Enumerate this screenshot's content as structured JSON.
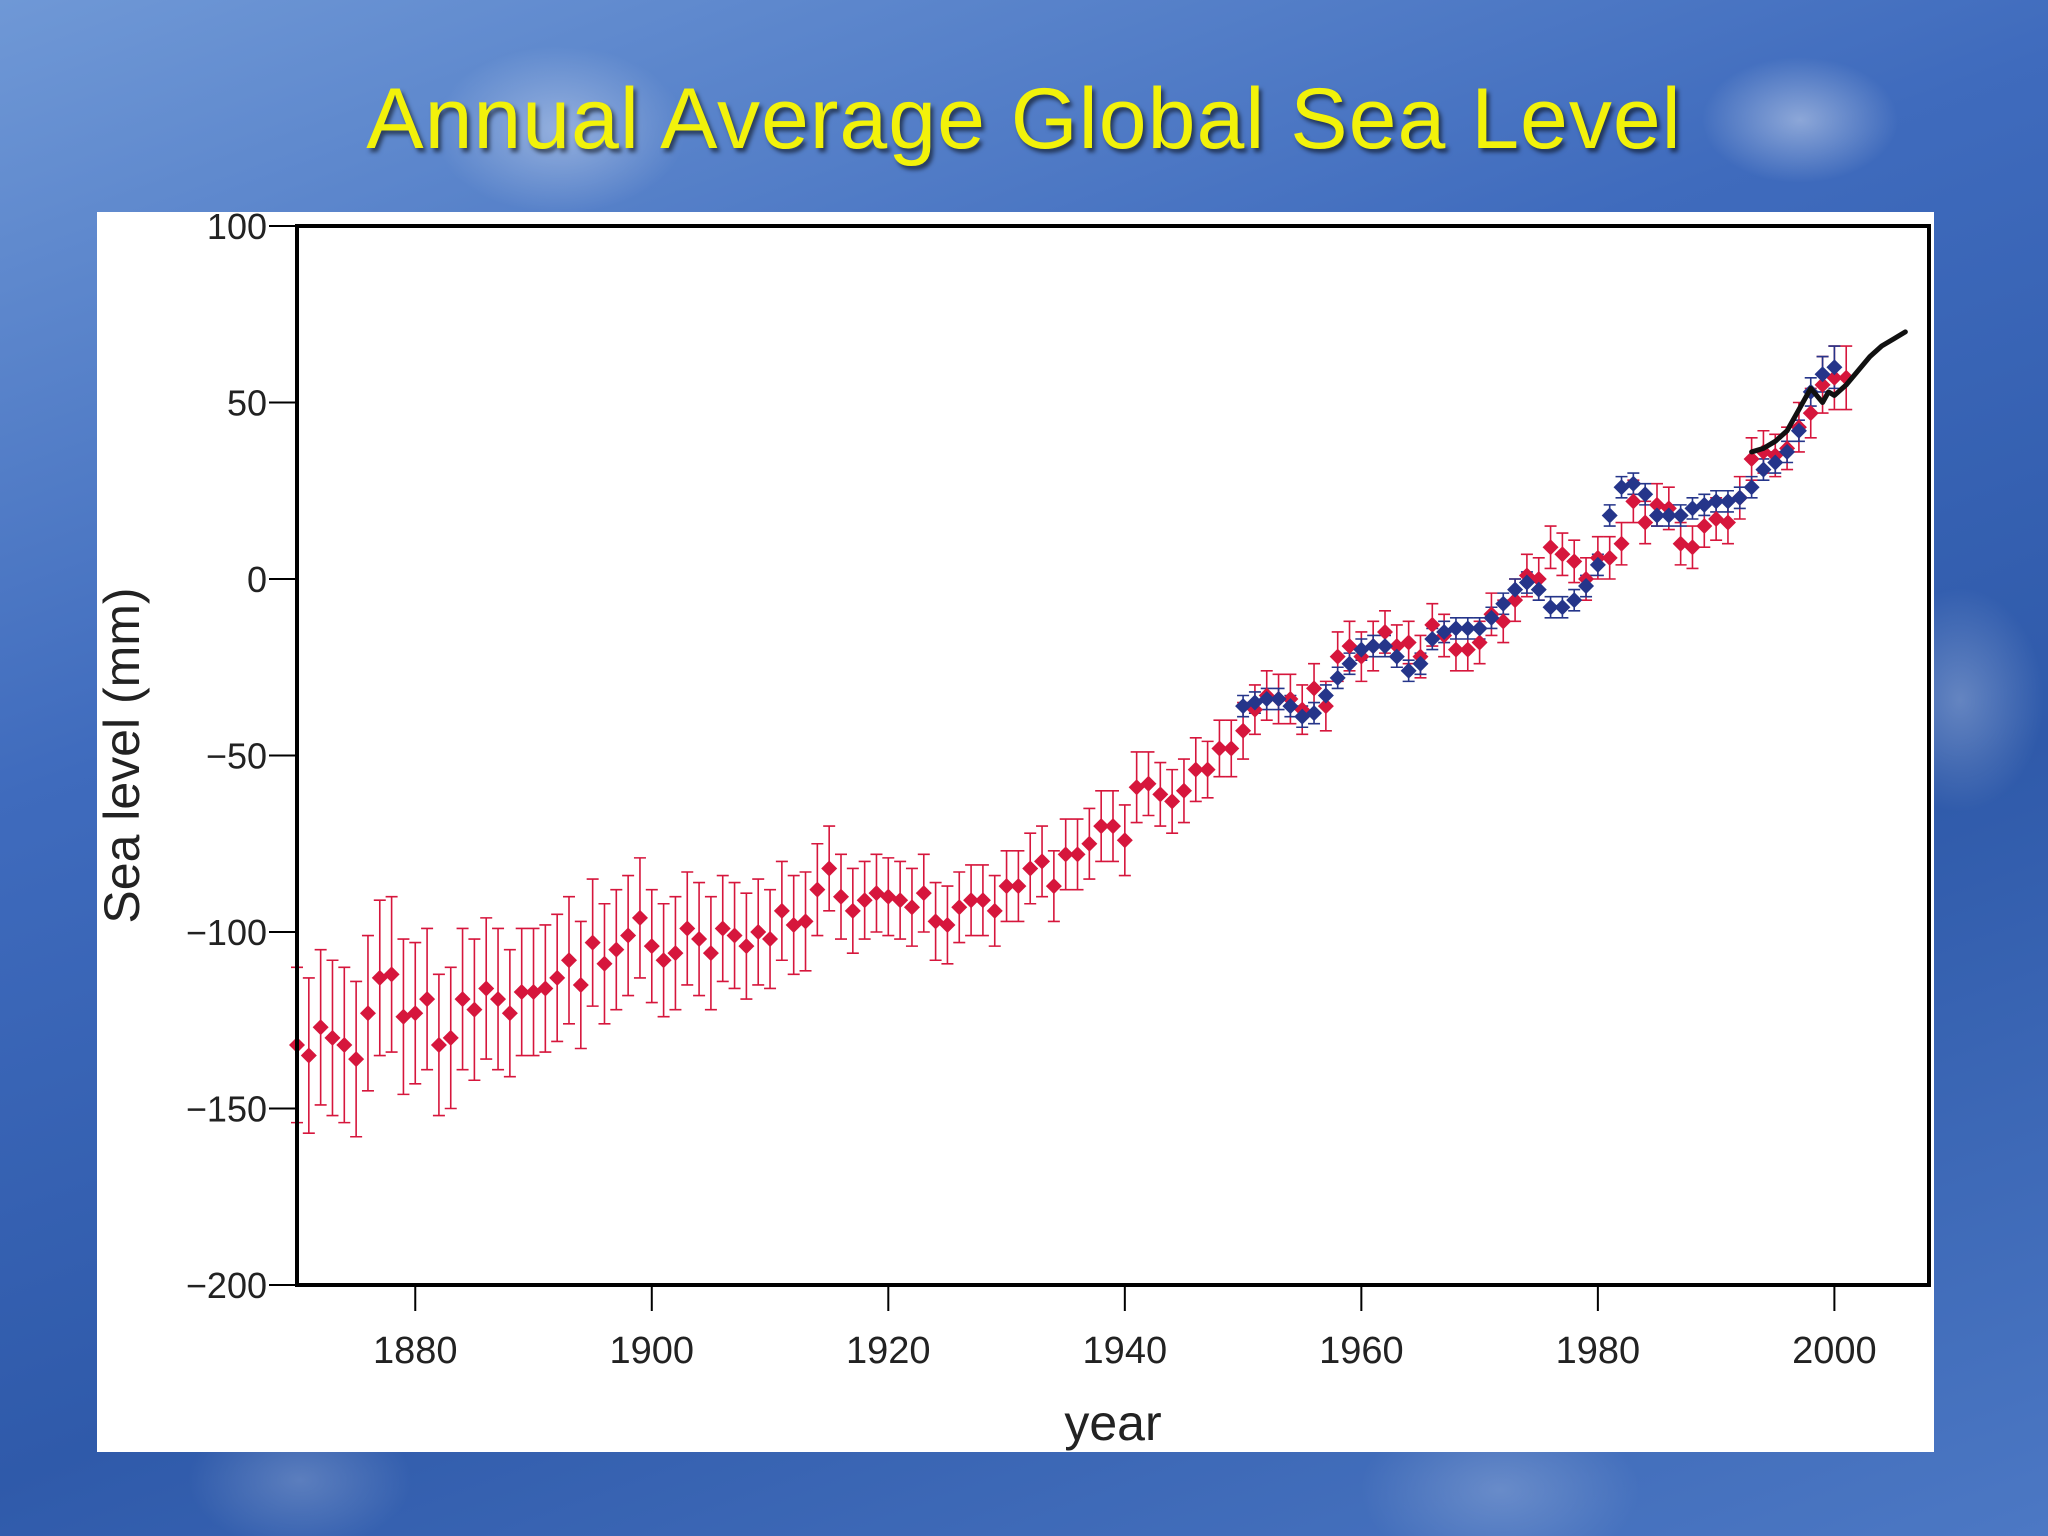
{
  "title": "Annual Average Global Sea Level",
  "chart_data": {
    "type": "scatter",
    "xlabel": "year",
    "ylabel": "Sea level (mm)",
    "xlim": [
      1870,
      2008
    ],
    "ylim": [
      -200,
      100
    ],
    "x_ticks": [
      1880,
      1900,
      1920,
      1940,
      1960,
      1980,
      2000
    ],
    "y_ticks": [
      100,
      50,
      0,
      -50,
      -100,
      -150,
      -200
    ],
    "colors": {
      "red_series": "#d6163c",
      "blue_series": "#25358a",
      "line_series": "#111111",
      "frame": "#000000"
    },
    "series": [
      {
        "marker": "diamond",
        "color": "#d6163c",
        "x": [
          1870,
          1871,
          1872,
          1873,
          1874,
          1875,
          1876,
          1877,
          1878,
          1879,
          1880,
          1881,
          1882,
          1883,
          1884,
          1885,
          1886,
          1887,
          1888,
          1889,
          1890,
          1891,
          1892,
          1893,
          1894,
          1895,
          1896,
          1897,
          1898,
          1899,
          1900,
          1901,
          1902,
          1903,
          1904,
          1905,
          1906,
          1907,
          1908,
          1909,
          1910,
          1911,
          1912,
          1913,
          1914,
          1915,
          1916,
          1917,
          1918,
          1919,
          1920,
          1921,
          1922,
          1923,
          1924,
          1925,
          1926,
          1927,
          1928,
          1929,
          1930,
          1931,
          1932,
          1933,
          1934,
          1935,
          1936,
          1937,
          1938,
          1939,
          1940,
          1941,
          1942,
          1943,
          1944,
          1945,
          1946,
          1947,
          1948,
          1949,
          1950,
          1951,
          1952,
          1953,
          1954,
          1955,
          1956,
          1957,
          1958,
          1959,
          1960,
          1961,
          1962,
          1963,
          1964,
          1965,
          1966,
          1967,
          1968,
          1969,
          1970,
          1971,
          1972,
          1973,
          1974,
          1975,
          1976,
          1977,
          1978,
          1979,
          1980,
          1981,
          1982,
          1983,
          1984,
          1985,
          1986,
          1987,
          1988,
          1989,
          1990,
          1991,
          1992,
          1993,
          1994,
          1995,
          1996,
          1997,
          1998,
          1999,
          2000,
          2001
        ],
        "y": [
          -132,
          -135,
          -127,
          -130,
          -132,
          -136,
          -123,
          -113,
          -112,
          -124,
          -123,
          -119,
          -132,
          -130,
          -119,
          -122,
          -116,
          -119,
          -123,
          -117,
          -117,
          -116,
          -113,
          -108,
          -115,
          -103,
          -109,
          -105,
          -101,
          -96,
          -104,
          -108,
          -106,
          -99,
          -102,
          -106,
          -99,
          -101,
          -104,
          -100,
          -102,
          -94,
          -98,
          -97,
          -88,
          -82,
          -90,
          -94,
          -91,
          -89,
          -90,
          -91,
          -93,
          -89,
          -97,
          -98,
          -93,
          -91,
          -91,
          -94,
          -87,
          -87,
          -82,
          -80,
          -87,
          -78,
          -78,
          -75,
          -70,
          -70,
          -74,
          -59,
          -58,
          -61,
          -63,
          -60,
          -54,
          -54,
          -48,
          -48,
          -43,
          -37,
          -33,
          -34,
          -34,
          -37,
          -31,
          -36,
          -22,
          -19,
          -22,
          -19,
          -15,
          -19,
          -18,
          -22,
          -13,
          -16,
          -20,
          -20,
          -18,
          -10,
          -12,
          -6,
          1,
          0,
          9,
          7,
          5,
          0,
          6,
          6,
          10,
          22,
          16,
          21,
          20,
          10,
          9,
          15,
          17,
          16,
          23,
          34,
          36,
          35,
          37,
          43,
          47,
          55,
          57,
          57
        ],
        "err": [
          22,
          22,
          22,
          22,
          22,
          22,
          22,
          22,
          22,
          22,
          20,
          20,
          20,
          20,
          20,
          20,
          20,
          20,
          18,
          18,
          18,
          18,
          18,
          18,
          18,
          18,
          17,
          17,
          17,
          17,
          16,
          16,
          16,
          16,
          16,
          16,
          15,
          15,
          15,
          15,
          14,
          14,
          14,
          14,
          13,
          12,
          12,
          12,
          11,
          11,
          11,
          11,
          11,
          11,
          11,
          11,
          10,
          10,
          10,
          10,
          10,
          10,
          10,
          10,
          10,
          10,
          10,
          10,
          10,
          10,
          10,
          10,
          9,
          9,
          9,
          9,
          9,
          8,
          8,
          8,
          8,
          7,
          7,
          7,
          7,
          7,
          7,
          7,
          7,
          7,
          7,
          7,
          6,
          6,
          6,
          6,
          6,
          6,
          6,
          6,
          6,
          6,
          6,
          6,
          6,
          6,
          6,
          6,
          6,
          6,
          6,
          6,
          6,
          6,
          6,
          6,
          6,
          6,
          6,
          6,
          6,
          6,
          6,
          6,
          6,
          6,
          6,
          7,
          7,
          8,
          9,
          9
        ]
      },
      {
        "marker": "circle",
        "color": "#25358a",
        "x": [
          1950,
          1951,
          1952,
          1953,
          1954,
          1955,
          1956,
          1957,
          1958,
          1959,
          1960,
          1961,
          1962,
          1963,
          1964,
          1965,
          1966,
          1967,
          1968,
          1969,
          1970,
          1971,
          1972,
          1973,
          1974,
          1975,
          1976,
          1977,
          1978,
          1979,
          1980,
          1981,
          1982,
          1983,
          1984,
          1985,
          1986,
          1987,
          1988,
          1989,
          1990,
          1991,
          1992,
          1993,
          1994,
          1995,
          1996,
          1997,
          1998,
          1999,
          2000
        ],
        "y": [
          -36,
          -35,
          -34,
          -34,
          -36,
          -39,
          -38,
          -33,
          -28,
          -24,
          -20,
          -19,
          -19,
          -22,
          -26,
          -24,
          -17,
          -15,
          -14,
          -14,
          -14,
          -11,
          -7,
          -3,
          -1,
          -3,
          -8,
          -8,
          -6,
          -2,
          4,
          18,
          26,
          27,
          24,
          18,
          18,
          18,
          20,
          21,
          22,
          22,
          23,
          26,
          31,
          33,
          36,
          42,
          53,
          58,
          60
        ],
        "err": [
          3,
          3,
          3,
          3,
          3,
          3,
          3,
          3,
          3,
          3,
          3,
          3,
          3,
          3,
          3,
          3,
          3,
          3,
          3,
          3,
          3,
          3,
          3,
          3,
          3,
          3,
          3,
          3,
          3,
          3,
          3,
          3,
          3,
          3,
          3,
          3,
          3,
          3,
          3,
          3,
          3,
          3,
          3,
          3,
          3,
          3,
          3,
          3,
          4,
          5,
          6
        ]
      },
      {
        "marker": "line",
        "color": "#111111",
        "x": [
          1993,
          1994,
          1995,
          1996,
          1997,
          1998,
          1998.5,
          1999,
          1999.5,
          2000,
          2001,
          2002,
          2003,
          2004,
          2005,
          2006
        ],
        "y": [
          36,
          37,
          39,
          42,
          48,
          54,
          52,
          50,
          53,
          52,
          55,
          59,
          63,
          66,
          68,
          70
        ]
      }
    ]
  }
}
